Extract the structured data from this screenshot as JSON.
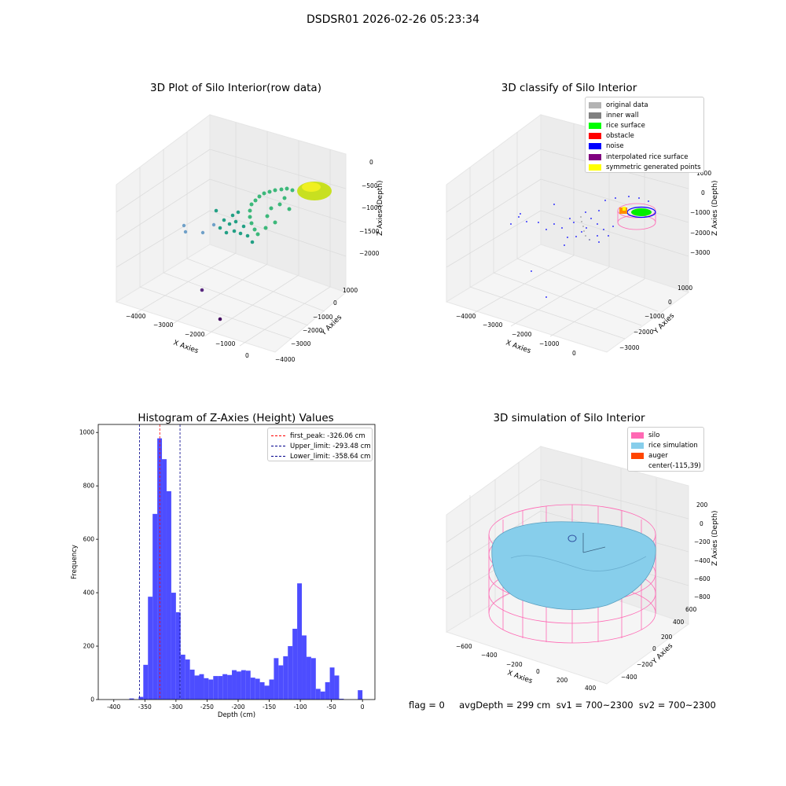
{
  "figure": {
    "title": "DSDSR01 2026-02-26 05:23:34"
  },
  "panels": {
    "raw": {
      "title": "3D Plot of Silo Interior(row data)",
      "xlabel": "X Axies",
      "ylabel": "Y Axies",
      "zlabel": "Z Axies (Depth)",
      "xticks": [
        "−4000",
        "−3000",
        "−2000",
        "−1000",
        "0"
      ],
      "yticks": [
        "−4000",
        "−3000",
        "−2000",
        "−1000",
        "0",
        "1000"
      ],
      "zticks": [
        "0",
        "−500",
        "−1000",
        "−1500",
        "−2000"
      ]
    },
    "classify": {
      "title": "3D classify of Silo Interior",
      "xlabel": "X Axies",
      "ylabel": "Y Axies",
      "zlabel": "Z Axies (Depth)",
      "xticks": [
        "−4000",
        "−3000",
        "−2000",
        "−1000",
        "0"
      ],
      "yticks": [
        "−3000",
        "−2000",
        "−1000",
        "0",
        "1000"
      ],
      "zticks": [
        "1000",
        "0",
        "−1000",
        "−2000",
        "−3000"
      ],
      "legend": [
        {
          "label": "original data",
          "color": "#b3b3b3"
        },
        {
          "label": "inner wall",
          "color": "#808080"
        },
        {
          "label": "rice surface",
          "color": "#00ff00"
        },
        {
          "label": "obstacle",
          "color": "#ff0000"
        },
        {
          "label": "noise",
          "color": "#0000ff"
        },
        {
          "label": "interpolated rice surface",
          "color": "#800080"
        },
        {
          "label": "symmetric generated points",
          "color": "#ffff00"
        }
      ]
    },
    "simulation": {
      "title": "3D simulation of Silo Interior",
      "xlabel": "X Axies",
      "ylabel": "Y Axies",
      "zlabel": "Z Axies (Depth)",
      "xticks": [
        "−600",
        "−400",
        "−200",
        "0",
        "200",
        "400"
      ],
      "yticks": [
        "−400",
        "−200",
        "0",
        "200",
        "400",
        "600"
      ],
      "zticks": [
        "200",
        "0",
        "−200",
        "−400",
        "−600",
        "−800"
      ],
      "legend": [
        {
          "label": "silo",
          "color": "#ff69b4"
        },
        {
          "label": "rice simulation",
          "color": "#87ceeb"
        },
        {
          "label": "auger",
          "color": "#ff4500"
        },
        {
          "label": "center(-115,39)",
          "color": ""
        }
      ]
    }
  },
  "chart_data": [
    {
      "type": "bar",
      "title": "Histogram of Z-Axies (Height) Values",
      "xlabel": "Depth (cm)",
      "ylabel": "Frequency",
      "xlim": [
        -425,
        20
      ],
      "ylim": [
        0,
        1030
      ],
      "xticks": [
        -400,
        -350,
        -300,
        -250,
        -200,
        -150,
        -100,
        -50,
        0
      ],
      "yticks": [
        0,
        200,
        400,
        600,
        800,
        1000
      ],
      "bar_color": "#4d4dff",
      "bin_width": 7.5,
      "bins": [
        [
          -371.3,
          4
        ],
        [
          -356.3,
          10
        ],
        [
          -348.8,
          130
        ],
        [
          -341.3,
          385
        ],
        [
          -333.8,
          695
        ],
        [
          -326.3,
          978
        ],
        [
          -318.8,
          900
        ],
        [
          -311.3,
          780
        ],
        [
          -303.8,
          400
        ],
        [
          -296.3,
          327
        ],
        [
          -288.8,
          168
        ],
        [
          -281.3,
          150
        ],
        [
          -273.8,
          112
        ],
        [
          -266.3,
          90
        ],
        [
          -258.8,
          95
        ],
        [
          -251.3,
          80
        ],
        [
          -243.8,
          75
        ],
        [
          -236.3,
          88
        ],
        [
          -228.8,
          88
        ],
        [
          -221.3,
          95
        ],
        [
          -213.8,
          92
        ],
        [
          -206.3,
          110
        ],
        [
          -198.8,
          105
        ],
        [
          -191.3,
          110
        ],
        [
          -183.8,
          108
        ],
        [
          -176.3,
          82
        ],
        [
          -168.8,
          78
        ],
        [
          -161.3,
          65
        ],
        [
          -153.8,
          52
        ],
        [
          -146.3,
          75
        ],
        [
          -138.8,
          155
        ],
        [
          -131.3,
          128
        ],
        [
          -123.8,
          162
        ],
        [
          -116.3,
          200
        ],
        [
          -108.8,
          265
        ],
        [
          -101.3,
          435
        ],
        [
          -93.8,
          240
        ],
        [
          -86.3,
          160
        ],
        [
          -78.8,
          155
        ],
        [
          -71.3,
          40
        ],
        [
          -63.8,
          30
        ],
        [
          -56.3,
          65
        ],
        [
          -48.8,
          120
        ],
        [
          -41.3,
          90
        ],
        [
          -33.8,
          3
        ],
        [
          -3.8,
          35
        ]
      ],
      "vlines": [
        {
          "name": "first_peak: -326.06 cm",
          "x": -326.06,
          "color": "#ff0000"
        },
        {
          "name": "Upper_limit: -293.48 cm",
          "x": -293.48,
          "color": "#00008b"
        },
        {
          "name": "Lower_limit: -358.64 cm",
          "x": -358.64,
          "color": "#00008b"
        }
      ]
    }
  ],
  "footer": {
    "text": "flag = 0     avgDepth = 299 cm  sv1 = 700~2300  sv2 = 700~2300"
  }
}
